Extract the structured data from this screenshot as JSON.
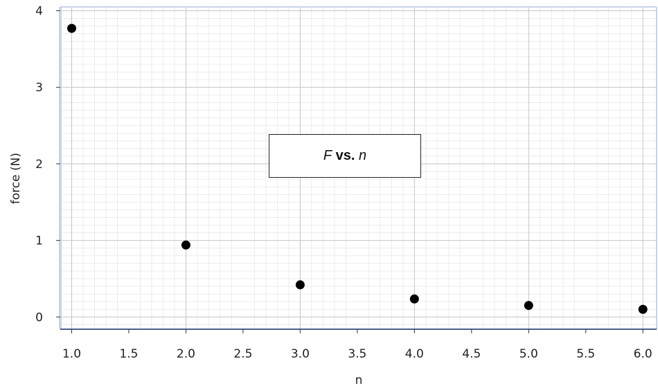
{
  "chart_data": {
    "type": "scatter",
    "title": "",
    "xlabel": "n",
    "ylabel": "force (N)",
    "xlim": [
      0.9,
      6.12
    ],
    "ylim": [
      -0.16,
      4.05
    ],
    "x_ticks": [
      "1.0",
      "1.5",
      "2.0",
      "2.5",
      "3.0",
      "3.5",
      "4.0",
      "4.5",
      "5.0",
      "5.5",
      "6.0"
    ],
    "y_ticks": [
      "0",
      "1",
      "2",
      "3",
      "4"
    ],
    "grid": true,
    "series": [
      {
        "name": "",
        "color": "#000000",
        "points": [
          {
            "x": 1.0,
            "y": 3.77
          },
          {
            "x": 2.0,
            "y": 0.94
          },
          {
            "x": 3.0,
            "y": 0.42
          },
          {
            "x": 4.0,
            "y": 0.235
          },
          {
            "x": 5.0,
            "y": 0.15
          },
          {
            "x": 6.0,
            "y": 0.1
          }
        ]
      }
    ],
    "legend": {
      "placement": "center",
      "parts": [
        {
          "text": "F",
          "style": "italic"
        },
        {
          "text": " ",
          "style": "normal"
        },
        {
          "text": "vs.",
          "style": "bold"
        },
        {
          "text": " ",
          "style": "normal"
        },
        {
          "text": "n",
          "style": "italic"
        }
      ]
    },
    "colors": {
      "major_grid": "#c4c4c4",
      "minor_grid": "#ececec",
      "plot_frame": "#c9d2ec",
      "x_axis_line": "#4a5f8e",
      "marker": "#000000"
    }
  }
}
